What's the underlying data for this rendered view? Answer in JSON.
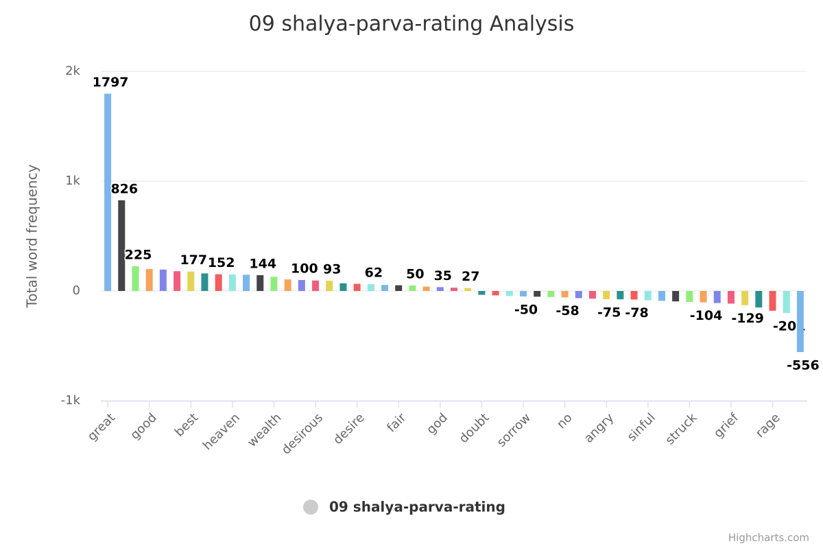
{
  "chart_data": {
    "type": "bar",
    "title": "09 shalya-parva-rating Analysis",
    "y_axis_label": "Total word frequency",
    "categories": [
      "great",
      null,
      null,
      "good",
      null,
      null,
      "best",
      null,
      null,
      "heaven",
      null,
      null,
      "wealth",
      null,
      null,
      "desirous",
      null,
      null,
      "desire",
      null,
      null,
      "fair",
      null,
      null,
      "god",
      null,
      null,
      "doubt",
      null,
      null,
      "sorrow",
      null,
      null,
      "no",
      null,
      null,
      "angry",
      null,
      null,
      "sinful",
      null,
      null,
      "struck",
      null,
      null,
      "grief",
      null,
      null,
      "rage",
      null,
      null
    ],
    "series": [
      {
        "name": "09 shalya-parva-rating",
        "color": "#cccccc",
        "values": [
          1797,
          826,
          225,
          200,
          195,
          180,
          177,
          160,
          152,
          150,
          148,
          144,
          130,
          105,
          100,
          95,
          93,
          70,
          65,
          62,
          55,
          52,
          50,
          40,
          35,
          30,
          27,
          -35,
          -40,
          -45,
          -50,
          -52,
          -55,
          -58,
          -65,
          -70,
          -75,
          -76,
          -78,
          -85,
          -90,
          -95,
          -100,
          -104,
          -110,
          -115,
          -129,
          -150,
          -180,
          -201,
          -556
        ],
        "value_labels": [
          "1797",
          "826",
          "225",
          null,
          null,
          null,
          "177",
          null,
          "152",
          null,
          null,
          "144",
          null,
          null,
          "100",
          null,
          "93",
          null,
          null,
          "62",
          null,
          null,
          "50",
          null,
          "35",
          null,
          "27",
          null,
          null,
          null,
          "-50",
          null,
          null,
          "-58",
          null,
          null,
          "-75",
          null,
          "-78",
          null,
          null,
          null,
          null,
          "-104",
          null,
          null,
          "-129",
          null,
          null,
          "-201",
          "-556"
        ]
      }
    ],
    "colors": [
      "#7cb5ec",
      "#434348",
      "#90ed7d",
      "#f7a35c",
      "#8085e9",
      "#f15c80",
      "#e4d354",
      "#2b908f",
      "#f45b5b",
      "#91e8e1"
    ],
    "ylim": [
      -1000,
      2000
    ],
    "yticks": [
      {
        "value": -1000,
        "label": "-1k"
      },
      0,
      {
        "value": 1000,
        "label": "1k"
      },
      {
        "value": 2000,
        "label": "2k"
      }
    ],
    "grid": true,
    "legend": "bottom",
    "credits": "Highcharts.com"
  }
}
